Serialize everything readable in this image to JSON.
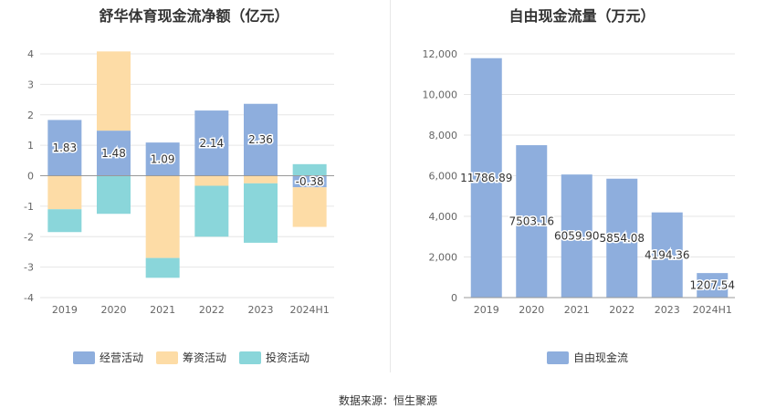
{
  "colors": {
    "operating": "#8eaedd",
    "financing": "#fddca6",
    "investing": "#8ad6da",
    "fcf": "#8eaedd"
  },
  "source_text": "数据来源：恒生聚源",
  "chart_data": [
    {
      "type": "bar",
      "stacked": true,
      "title": "舒华体育现金流净额（亿元）",
      "categories": [
        "2019",
        "2020",
        "2021",
        "2022",
        "2023",
        "2024H1"
      ],
      "ylim": [
        -4,
        4
      ],
      "yticks": [
        4,
        3,
        2,
        1,
        0,
        -1,
        -2,
        -3,
        -4
      ],
      "grid": true,
      "legend_position": "bottom",
      "series": [
        {
          "name": "经营活动",
          "color_key": "operating",
          "values": [
            1.83,
            1.48,
            1.09,
            2.14,
            2.36,
            -0.38
          ],
          "labels": [
            "1.83",
            "1.48",
            "1.09",
            "2.14",
            "2.36",
            "-0.38"
          ]
        },
        {
          "name": "筹资活动",
          "color_key": "financing",
          "values": [
            -1.1,
            2.6,
            -2.7,
            -0.33,
            -0.25,
            -1.3
          ]
        },
        {
          "name": "投资活动",
          "color_key": "investing",
          "values": [
            -0.75,
            -1.25,
            -0.65,
            -1.67,
            -1.95,
            0.38
          ]
        }
      ]
    },
    {
      "type": "bar",
      "title": "自由现金流量（万元）",
      "categories": [
        "2019",
        "2020",
        "2021",
        "2022",
        "2023",
        "2024H1"
      ],
      "ylim": [
        0,
        12000
      ],
      "yticks": [
        12000,
        10000,
        8000,
        6000,
        4000,
        2000,
        0
      ],
      "ytick_labels": [
        "12,000",
        "10,000",
        "8,000",
        "6,000",
        "4,000",
        "2,000",
        "0"
      ],
      "grid": true,
      "legend_position": "bottom",
      "series": [
        {
          "name": "自由现金流",
          "color_key": "fcf",
          "values": [
            11786.89,
            7503.16,
            6059.9,
            5854.08,
            4194.36,
            1207.54
          ],
          "labels": [
            "11786.89",
            "7503.16",
            "6059.90",
            "5854.08",
            "4194.36",
            "1207.54"
          ]
        }
      ]
    }
  ]
}
